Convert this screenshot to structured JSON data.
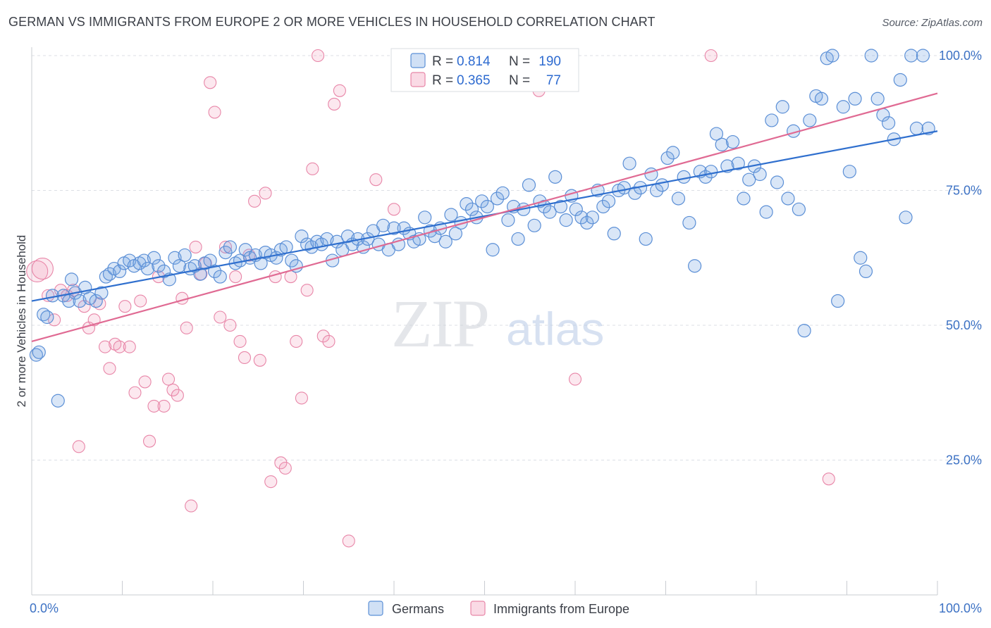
{
  "title": "GERMAN VS IMMIGRANTS FROM EUROPE 2 OR MORE VEHICLES IN HOUSEHOLD CORRELATION CHART",
  "source": "Source: ZipAtlas.com",
  "watermark": {
    "zip": "ZIP",
    "atlas": "atlas"
  },
  "colors": {
    "blue": "#5b8fd6",
    "blue_fill": "rgba(120,165,225,0.28)",
    "blue_line": "#2f6fce",
    "pink": "#e886a8",
    "pink_fill": "rgba(240,150,180,0.22)",
    "pink_line": "#e06a93",
    "tick_text": "#3d72c4",
    "grid": "#dcdfe5"
  },
  "legend": {
    "rows": [
      {
        "r_label": "R =",
        "r_value": "0.814",
        "n_label": "N =",
        "n_value": "190"
      },
      {
        "r_label": "R =",
        "r_value": "0.365",
        "n_label": "N =",
        "n_value": "77"
      }
    ]
  },
  "chart_data": {
    "type": "scatter",
    "title": "GERMAN VS IMMIGRANTS FROM EUROPE 2 OR MORE VEHICLES IN HOUSEHOLD CORRELATION CHART",
    "xlabel": "",
    "ylabel": "2 or more Vehicles in Household",
    "xlim": [
      0,
      100
    ],
    "ylim": [
      0,
      103
    ],
    "x_tick_labels": [
      "0.0%",
      "100.0%"
    ],
    "y_tick_labels": [
      "25.0%",
      "50.0%",
      "75.0%",
      "100.0%"
    ],
    "y_ticks": [
      25,
      50,
      75,
      100
    ],
    "grid": true,
    "legend_position": "top-center",
    "series": [
      {
        "name": "Germans",
        "r": 0.814,
        "n": 190,
        "trend": [
          [
            0,
            54.5
          ],
          [
            100,
            86
          ]
        ],
        "points": [
          [
            0.5,
            44.5
          ],
          [
            0.8,
            45
          ],
          [
            1.3,
            52
          ],
          [
            1.7,
            51.5
          ],
          [
            2.3,
            55.5
          ],
          [
            2.9,
            36
          ],
          [
            3.5,
            55.5
          ],
          [
            4.1,
            54.5
          ],
          [
            4.4,
            58.5
          ],
          [
            4.8,
            56
          ],
          [
            5.3,
            54.5
          ],
          [
            5.9,
            57
          ],
          [
            6.4,
            55
          ],
          [
            7.1,
            54.5
          ],
          [
            7.7,
            56
          ],
          [
            8.2,
            59
          ],
          [
            8.6,
            59.5
          ],
          [
            9.1,
            60.5
          ],
          [
            9.7,
            60
          ],
          [
            10.2,
            61.5
          ],
          [
            10.8,
            62
          ],
          [
            11.3,
            61
          ],
          [
            11.9,
            61.5
          ],
          [
            12.4,
            62
          ],
          [
            12.8,
            60.5
          ],
          [
            13.5,
            62.5
          ],
          [
            14.0,
            61
          ],
          [
            14.6,
            60
          ],
          [
            15.2,
            58.5
          ],
          [
            15.8,
            62.5
          ],
          [
            16.3,
            61
          ],
          [
            16.9,
            63
          ],
          [
            17.5,
            60.5
          ],
          [
            18.0,
            61
          ],
          [
            18.6,
            59.5
          ],
          [
            19.1,
            61.5
          ],
          [
            19.7,
            62
          ],
          [
            20.2,
            60
          ],
          [
            20.8,
            59
          ],
          [
            21.4,
            63.5
          ],
          [
            21.9,
            64.5
          ],
          [
            22.5,
            61.5
          ],
          [
            23.0,
            62
          ],
          [
            23.6,
            64
          ],
          [
            24.1,
            62.5
          ],
          [
            24.7,
            63
          ],
          [
            25.3,
            61.5
          ],
          [
            25.8,
            63.5
          ],
          [
            26.4,
            63
          ],
          [
            27.0,
            62.5
          ],
          [
            27.5,
            64
          ],
          [
            28.1,
            64.5
          ],
          [
            28.7,
            62
          ],
          [
            29.2,
            61
          ],
          [
            29.8,
            66.5
          ],
          [
            30.4,
            65
          ],
          [
            30.9,
            64.5
          ],
          [
            31.5,
            65.5
          ],
          [
            32.0,
            65
          ],
          [
            32.6,
            66
          ],
          [
            33.2,
            62
          ],
          [
            33.7,
            65.5
          ],
          [
            34.3,
            64
          ],
          [
            34.9,
            66.5
          ],
          [
            35.4,
            65
          ],
          [
            36.0,
            66
          ],
          [
            36.6,
            64.5
          ],
          [
            37.1,
            66
          ],
          [
            37.7,
            67.5
          ],
          [
            38.3,
            65
          ],
          [
            38.8,
            68.5
          ],
          [
            39.4,
            64
          ],
          [
            40.0,
            68
          ],
          [
            40.5,
            65
          ],
          [
            41.1,
            68
          ],
          [
            41.7,
            67
          ],
          [
            42.2,
            65.5
          ],
          [
            42.8,
            66
          ],
          [
            43.4,
            70
          ],
          [
            44.0,
            67.5
          ],
          [
            44.5,
            66.5
          ],
          [
            45.1,
            68
          ],
          [
            45.7,
            65.5
          ],
          [
            46.3,
            70.5
          ],
          [
            46.8,
            67
          ],
          [
            47.4,
            69
          ],
          [
            48.0,
            72.5
          ],
          [
            48.6,
            71.5
          ],
          [
            49.1,
            70
          ],
          [
            49.7,
            73
          ],
          [
            50.3,
            72
          ],
          [
            50.9,
            64
          ],
          [
            51.4,
            73.5
          ],
          [
            52.0,
            74.5
          ],
          [
            52.6,
            69.5
          ],
          [
            53.2,
            72
          ],
          [
            53.7,
            66
          ],
          [
            54.3,
            71.5
          ],
          [
            54.9,
            76
          ],
          [
            55.5,
            68.5
          ],
          [
            56.1,
            73
          ],
          [
            56.6,
            72
          ],
          [
            57.2,
            71
          ],
          [
            57.8,
            77.5
          ],
          [
            58.4,
            72
          ],
          [
            59.0,
            69.5
          ],
          [
            59.6,
            74
          ],
          [
            60.1,
            71.5
          ],
          [
            60.7,
            70
          ],
          [
            61.3,
            69
          ],
          [
            61.9,
            70
          ],
          [
            62.5,
            75
          ],
          [
            63.1,
            72
          ],
          [
            63.7,
            73
          ],
          [
            64.3,
            67
          ],
          [
            64.8,
            75
          ],
          [
            65.4,
            75.5
          ],
          [
            66.0,
            80
          ],
          [
            66.6,
            74.5
          ],
          [
            67.2,
            75.5
          ],
          [
            67.8,
            66
          ],
          [
            68.4,
            78
          ],
          [
            69.0,
            75
          ],
          [
            69.6,
            76
          ],
          [
            70.2,
            81
          ],
          [
            70.8,
            82
          ],
          [
            71.4,
            73.5
          ],
          [
            72.0,
            77.5
          ],
          [
            72.6,
            69
          ],
          [
            73.2,
            61
          ],
          [
            73.8,
            78.5
          ],
          [
            74.4,
            77.5
          ],
          [
            75.0,
            78.5
          ],
          [
            75.6,
            85.5
          ],
          [
            76.2,
            83.5
          ],
          [
            76.8,
            79.5
          ],
          [
            77.4,
            84
          ],
          [
            78.0,
            80
          ],
          [
            78.6,
            73.5
          ],
          [
            79.2,
            77
          ],
          [
            79.8,
            79.5
          ],
          [
            80.4,
            78
          ],
          [
            81.1,
            71
          ],
          [
            81.7,
            88
          ],
          [
            82.3,
            76.5
          ],
          [
            82.9,
            90.5
          ],
          [
            83.5,
            73.5
          ],
          [
            84.1,
            86
          ],
          [
            84.7,
            71.5
          ],
          [
            85.3,
            49
          ],
          [
            85.9,
            88
          ],
          [
            86.6,
            92.5
          ],
          [
            87.2,
            92
          ],
          [
            87.8,
            99.5
          ],
          [
            88.4,
            100
          ],
          [
            89.0,
            54.5
          ],
          [
            89.6,
            90.5
          ],
          [
            90.3,
            78.5
          ],
          [
            90.9,
            92
          ],
          [
            91.5,
            62.5
          ],
          [
            92.1,
            60
          ],
          [
            92.7,
            100
          ],
          [
            93.4,
            92
          ],
          [
            94.0,
            89
          ],
          [
            94.6,
            87.5
          ],
          [
            95.2,
            84.5
          ],
          [
            95.9,
            95.5
          ],
          [
            96.5,
            70
          ],
          [
            97.1,
            100
          ],
          [
            97.7,
            86.5
          ],
          [
            98.4,
            100
          ],
          [
            99.0,
            86.5
          ]
        ]
      },
      {
        "name": "Immigrants from Europe",
        "r": 0.365,
        "n": 77,
        "trend": [
          [
            0,
            47
          ],
          [
            100,
            93
          ]
        ],
        "points": [
          [
            0.6,
            60
          ],
          [
            1.2,
            60.5
          ],
          [
            1.8,
            55.5
          ],
          [
            2.5,
            51
          ],
          [
            3.2,
            56.5
          ],
          [
            3.9,
            55.5
          ],
          [
            4.6,
            56.5
          ],
          [
            5.2,
            27.5
          ],
          [
            5.8,
            53.5
          ],
          [
            6.3,
            49.5
          ],
          [
            6.9,
            51
          ],
          [
            7.5,
            54
          ],
          [
            8.1,
            46
          ],
          [
            8.6,
            42
          ],
          [
            9.2,
            46.5
          ],
          [
            9.7,
            46
          ],
          [
            10.3,
            53.5
          ],
          [
            10.8,
            46
          ],
          [
            11.4,
            37.5
          ],
          [
            12.0,
            54.5
          ],
          [
            12.5,
            39.5
          ],
          [
            13.0,
            28.5
          ],
          [
            13.5,
            35
          ],
          [
            14.0,
            59
          ],
          [
            14.6,
            35
          ],
          [
            15.1,
            40
          ],
          [
            15.6,
            38
          ],
          [
            16.1,
            37
          ],
          [
            16.6,
            55
          ],
          [
            17.1,
            49.5
          ],
          [
            17.6,
            16.5
          ],
          [
            18.1,
            64.5
          ],
          [
            18.7,
            59.5
          ],
          [
            19.2,
            61.5
          ],
          [
            19.7,
            95
          ],
          [
            20.2,
            89.5
          ],
          [
            20.8,
            51.5
          ],
          [
            21.4,
            64.5
          ],
          [
            21.9,
            50
          ],
          [
            22.5,
            59
          ],
          [
            23.0,
            47
          ],
          [
            23.5,
            44
          ],
          [
            24.0,
            63
          ],
          [
            24.6,
            73
          ],
          [
            25.2,
            43.5
          ],
          [
            25.8,
            74.5
          ],
          [
            26.4,
            21
          ],
          [
            26.9,
            59
          ],
          [
            27.5,
            24.5
          ],
          [
            28.0,
            23.5
          ],
          [
            28.6,
            59
          ],
          [
            29.2,
            47
          ],
          [
            29.8,
            36.5
          ],
          [
            30.4,
            56.5
          ],
          [
            31.0,
            79
          ],
          [
            31.6,
            100
          ],
          [
            32.2,
            48
          ],
          [
            32.8,
            47
          ],
          [
            33.4,
            91
          ],
          [
            34.0,
            93.5
          ],
          [
            35.0,
            10
          ],
          [
            38.0,
            77
          ],
          [
            40.0,
            71.5
          ],
          [
            45.0,
            100
          ],
          [
            52.0,
            100
          ],
          [
            56.0,
            93.5
          ],
          [
            60.0,
            40
          ],
          [
            75.0,
            100
          ],
          [
            88.0,
            21.5
          ]
        ]
      }
    ]
  },
  "bottom_legend": [
    {
      "label": "Germans"
    },
    {
      "label": "Immigrants from Europe"
    }
  ]
}
